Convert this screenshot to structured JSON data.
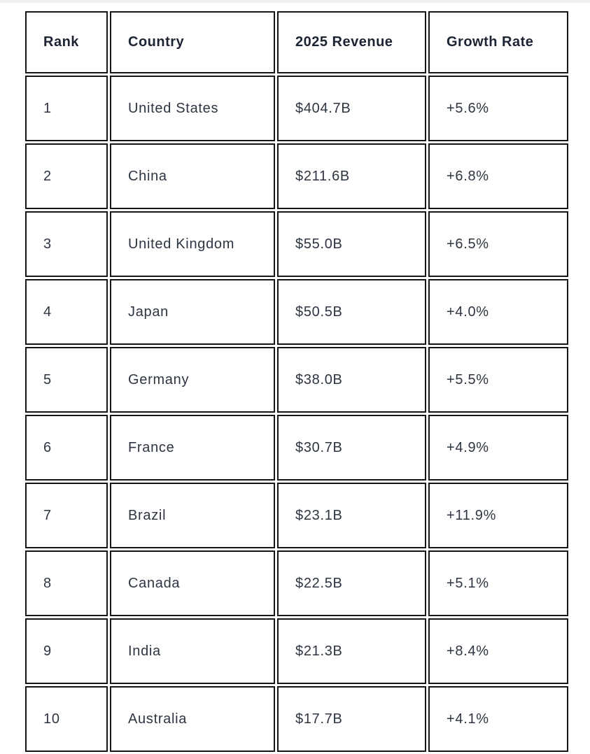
{
  "page": {
    "background_color": "#ffffff",
    "top_strip_color": "#f1f1f1"
  },
  "table": {
    "border_color": "#161616",
    "header_text_color": "#1c2433",
    "body_text_color": "#2e3542",
    "columns": [
      "Rank",
      "Country",
      "2025 Revenue",
      "Growth Rate"
    ],
    "rows": [
      [
        "1",
        "United States",
        "$404.7B",
        "+5.6%"
      ],
      [
        "2",
        "China",
        "$211.6B",
        "+6.8%"
      ],
      [
        "3",
        "United Kingdom",
        "$55.0B",
        "+6.5%"
      ],
      [
        "4",
        "Japan",
        "$50.5B",
        "+4.0%"
      ],
      [
        "5",
        "Germany",
        "$38.0B",
        "+5.5%"
      ],
      [
        "6",
        "France",
        "$30.7B",
        "+4.9%"
      ],
      [
        "7",
        "Brazil",
        "$23.1B",
        "+11.9%"
      ],
      [
        "8",
        "Canada",
        "$22.5B",
        "+5.1%"
      ],
      [
        "9",
        "India",
        "$21.3B",
        "+8.4%"
      ],
      [
        "10",
        "Australia",
        "$17.7B",
        "+4.1%"
      ]
    ]
  },
  "chart_data": {
    "type": "table",
    "columns": [
      "Rank",
      "Country",
      "2025 Revenue",
      "Growth Rate"
    ],
    "rows": [
      {
        "rank": 1,
        "country": "United States",
        "revenue_2025": "$404.7B",
        "revenue_billions_usd": 404.7,
        "growth_rate": "+5.6%",
        "growth_rate_percent": 5.6
      },
      {
        "rank": 2,
        "country": "China",
        "revenue_2025": "$211.6B",
        "revenue_billions_usd": 211.6,
        "growth_rate": "+6.8%",
        "growth_rate_percent": 6.8
      },
      {
        "rank": 3,
        "country": "United Kingdom",
        "revenue_2025": "$55.0B",
        "revenue_billions_usd": 55.0,
        "growth_rate": "+6.5%",
        "growth_rate_percent": 6.5
      },
      {
        "rank": 4,
        "country": "Japan",
        "revenue_2025": "$50.5B",
        "revenue_billions_usd": 50.5,
        "growth_rate": "+4.0%",
        "growth_rate_percent": 4.0
      },
      {
        "rank": 5,
        "country": "Germany",
        "revenue_2025": "$38.0B",
        "revenue_billions_usd": 38.0,
        "growth_rate": "+5.5%",
        "growth_rate_percent": 5.5
      },
      {
        "rank": 6,
        "country": "France",
        "revenue_2025": "$30.7B",
        "revenue_billions_usd": 30.7,
        "growth_rate": "+4.9%",
        "growth_rate_percent": 4.9
      },
      {
        "rank": 7,
        "country": "Brazil",
        "revenue_2025": "$23.1B",
        "revenue_billions_usd": 23.1,
        "growth_rate": "+11.9%",
        "growth_rate_percent": 11.9
      },
      {
        "rank": 8,
        "country": "Canada",
        "revenue_2025": "$22.5B",
        "revenue_billions_usd": 22.5,
        "growth_rate": "+5.1%",
        "growth_rate_percent": 5.1
      },
      {
        "rank": 9,
        "country": "India",
        "revenue_2025": "$21.3B",
        "revenue_billions_usd": 21.3,
        "growth_rate": "+8.4%",
        "growth_rate_percent": 8.4
      },
      {
        "rank": 10,
        "country": "Australia",
        "revenue_2025": "$17.7B",
        "revenue_billions_usd": 17.7,
        "growth_rate": "+4.1%",
        "growth_rate_percent": 4.1
      }
    ]
  }
}
